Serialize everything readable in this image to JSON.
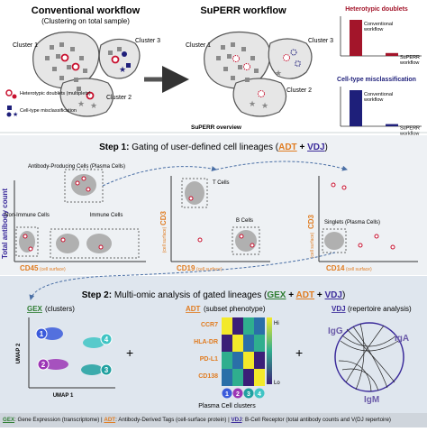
{
  "top": {
    "conventional_title": "Conventional workflow",
    "conventional_subtitle": "(Clustering on total sample)",
    "superr_title": "SuPERR workflow",
    "cluster1": "Cluster 1",
    "cluster2": "Cluster 2",
    "cluster3": "Cluster 3",
    "legend_doublets": "Heterotypic doublets (multiplets)",
    "legend_misclass": "Cell-type misclassification",
    "overview_label": "SuPERR overview"
  },
  "mini_charts": [
    {
      "title": "Heterotypic doublets",
      "bars": [
        {
          "label": "Conventional workflow",
          "value": 1.0
        },
        {
          "label": "SuPERR workflow",
          "value": 0.08
        }
      ],
      "color": "#a3152a"
    },
    {
      "title": "Cell-type misclassification",
      "bars": [
        {
          "label": "Conventional workflow",
          "value": 1.0
        },
        {
          "label": "SuPERR workflow",
          "value": 0.06
        }
      ],
      "color": "#1e1f7a"
    }
  ],
  "step1": {
    "title_prefix": "Step 1:",
    "title_text": "Gating of user-defined cell lineages (",
    "adt": "ADT",
    "plus": "+",
    "vdj": "VDJ",
    "close": ")",
    "y_axis": "Total antibody count",
    "antibody_cells": "Antibody-Producing Cells (Plasma Cells)",
    "non_immune": "Non-Immune Cells",
    "immune": "Immune Cells",
    "t_cells": "T Cells",
    "b_cells": "B Cells",
    "singlets": "Singlets (Plasma Cells)",
    "cd45": "CD45",
    "cd19": "CD19",
    "cd14": "CD14",
    "cd3": "CD3",
    "cell_surface": "(cell surface)"
  },
  "step2": {
    "title_prefix": "Step 2:",
    "title_text": "Multi-omic analysis of gated lineages (",
    "gex": "GEX",
    "adt": "ADT",
    "vdj": "VDJ",
    "plus": "+",
    "close": ")",
    "gex_panel": "GEX",
    "gex_sub": "(clusters)",
    "adt_panel": "ADT",
    "adt_sub": "(subset phenotype)",
    "vdj_panel": "VDJ",
    "vdj_sub": "(repertoire analysis)",
    "umap1": "UMAP 1",
    "umap2": "UMAP 2",
    "markers": [
      "CCR7",
      "HLA-DR",
      "PD-L1",
      "CD138"
    ],
    "hi": "Hi",
    "lo": "Lo",
    "plasma_clusters": "Plasma Cell clusters",
    "cluster_ids": [
      "1",
      "2",
      "3",
      "4"
    ],
    "igg": "IgG",
    "iga": "IgA",
    "igm": "IgM"
  },
  "bottom_legend": {
    "gex_key": "GEX",
    "gex_text": ": Gene Expression (transcriptome) |",
    "adt_key": "ADT",
    "adt_text": ": Antibody-Derived Tags (cell-surface protein) |",
    "vdj_key": "VDJ",
    "vdj_text": ": B-Cell Receptor (total antibody counts and V(DJ repertoire)"
  },
  "colors": {
    "step1_bg": "#eef1f4",
    "step2_bg": "#dfe6ee",
    "adt": "#e07b1f",
    "vdj": "#3a2a9a",
    "gex": "#2e7d32",
    "doublet": "#c8102e",
    "misclass": "#1e1f7a"
  }
}
